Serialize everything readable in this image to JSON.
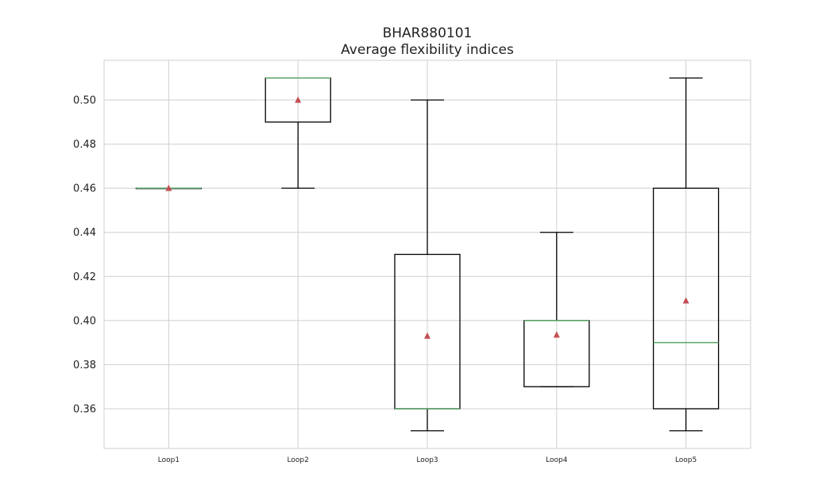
{
  "chart_data": {
    "type": "box",
    "title": "BHAR880101",
    "subtitle": "Average flexibility indices",
    "xlabel": "",
    "ylabel": "",
    "ylim": [
      0.342,
      0.518
    ],
    "yticks": [
      "0.36",
      "0.38",
      "0.40",
      "0.42",
      "0.44",
      "0.46",
      "0.48",
      "0.50"
    ],
    "grid": true,
    "categories": [
      "Loop1",
      "Loop2",
      "Loop3",
      "Loop4",
      "Loop5"
    ],
    "boxes": [
      {
        "label": "Loop1",
        "whisker_low": 0.46,
        "q1": 0.46,
        "median": 0.46,
        "q3": 0.46,
        "whisker_high": 0.46,
        "mean": 0.46
      },
      {
        "label": "Loop2",
        "whisker_low": 0.46,
        "q1": 0.49,
        "median": 0.51,
        "q3": 0.51,
        "whisker_high": 0.51,
        "mean": 0.5
      },
      {
        "label": "Loop3",
        "whisker_low": 0.35,
        "q1": 0.36,
        "median": 0.36,
        "q3": 0.43,
        "whisker_high": 0.5,
        "mean": 0.393
      },
      {
        "label": "Loop4",
        "whisker_low": 0.37,
        "q1": 0.37,
        "median": 0.4,
        "q3": 0.4,
        "whisker_high": 0.44,
        "mean": 0.3935
      },
      {
        "label": "Loop5",
        "whisker_low": 0.35,
        "q1": 0.36,
        "median": 0.39,
        "q3": 0.46,
        "whisker_high": 0.51,
        "mean": 0.409
      }
    ],
    "colors": {
      "box": "#000000",
      "median": "#5aa469",
      "mean": "#c44e52",
      "grid": "#cfcfcf"
    }
  }
}
